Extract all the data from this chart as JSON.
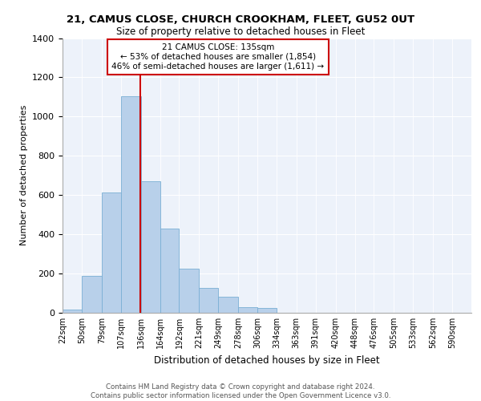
{
  "title": "21, CAMUS CLOSE, CHURCH CROOKHAM, FLEET, GU52 0UT",
  "subtitle": "Size of property relative to detached houses in Fleet",
  "xlabel": "Distribution of detached houses by size in Fleet",
  "ylabel": "Number of detached properties",
  "bar_color": "#b8d0ea",
  "bar_edge_color": "#7aafd4",
  "vline_x": 135,
  "vline_color": "#cc0000",
  "categories": [
    "22sqm",
    "50sqm",
    "79sqm",
    "107sqm",
    "136sqm",
    "164sqm",
    "192sqm",
    "221sqm",
    "249sqm",
    "278sqm",
    "306sqm",
    "334sqm",
    "363sqm",
    "391sqm",
    "420sqm",
    "448sqm",
    "476sqm",
    "505sqm",
    "533sqm",
    "562sqm",
    "590sqm"
  ],
  "bin_edges": [
    22,
    50,
    79,
    107,
    136,
    164,
    192,
    221,
    249,
    278,
    306,
    334,
    363,
    391,
    420,
    448,
    476,
    505,
    533,
    562,
    590,
    618
  ],
  "values": [
    15,
    190,
    615,
    1105,
    670,
    430,
    225,
    125,
    80,
    30,
    25,
    0,
    0,
    0,
    0,
    0,
    0,
    0,
    0,
    0,
    0
  ],
  "ylim": [
    0,
    1400
  ],
  "yticks": [
    0,
    200,
    400,
    600,
    800,
    1000,
    1200,
    1400
  ],
  "annotation_title": "21 CAMUS CLOSE: 135sqm",
  "annotation_line1": "← 53% of detached houses are smaller (1,854)",
  "annotation_line2": "46% of semi-detached houses are larger (1,611) →",
  "annotation_box_color": "#ffffff",
  "annotation_box_edge": "#cc0000",
  "footer1": "Contains HM Land Registry data © Crown copyright and database right 2024.",
  "footer2": "Contains public sector information licensed under the Open Government Licence v3.0.",
  "background_color": "#edf2fa"
}
